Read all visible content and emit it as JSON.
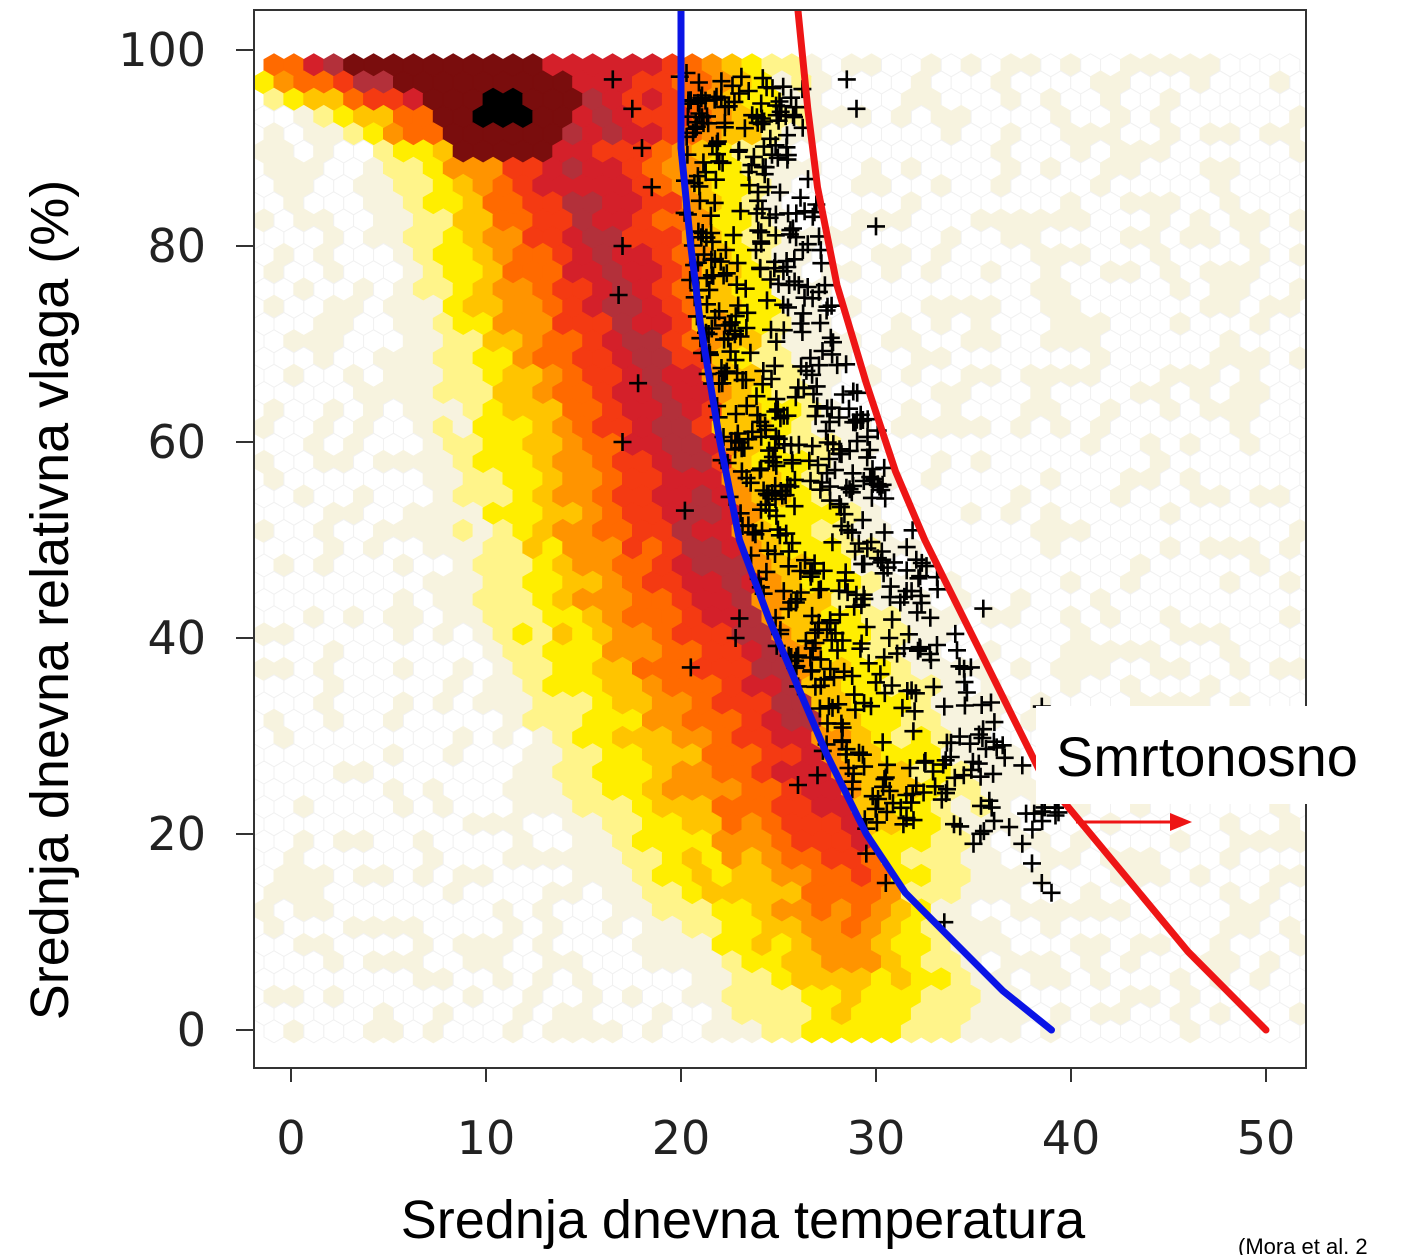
{
  "chart_data": {
    "type": "scatter",
    "xlabel": "Srednja dnevna temperatura",
    "ylabel": "Srednja dnevna relativna vlaga (%)",
    "xlim": [
      -2,
      52
    ],
    "ylim": [
      -4,
      104
    ],
    "x_ticks": [
      0,
      10,
      20,
      30,
      40,
      50
    ],
    "y_ticks": [
      0,
      20,
      40,
      60,
      80,
      100
    ],
    "x_tick_labels": [
      "0",
      "10",
      "20",
      "30",
      "40",
      "50"
    ],
    "y_tick_labels": [
      "0",
      "20",
      "40",
      "60",
      "80",
      "100"
    ],
    "grid": false,
    "annotation": "Smrtonosno",
    "source_note": "(Mora et al. 2",
    "colors": {
      "blue_line": "#0a14e6",
      "red_line": "#ee1515",
      "arrow": "#ee1515",
      "heat_low": "#f4f0dc",
      "heat_mid": "#ffee00",
      "heat_high": "#ff8a00",
      "heat_top": "#e31a1c",
      "heat_max": "#7a0d0d"
    },
    "series": [
      {
        "type": "line",
        "color": "blue",
        "points": [
          [
            20,
            104
          ],
          [
            20,
            90
          ],
          [
            20.5,
            80
          ],
          [
            21,
            72
          ],
          [
            22,
            60
          ],
          [
            23,
            50
          ],
          [
            24.5,
            42
          ],
          [
            26,
            35
          ],
          [
            27.5,
            28
          ],
          [
            29.5,
            20
          ],
          [
            31.5,
            14
          ],
          [
            34,
            9
          ],
          [
            36.5,
            4
          ],
          [
            39,
            0
          ]
        ]
      },
      {
        "type": "line",
        "color": "red",
        "points": [
          [
            26,
            104
          ],
          [
            26.5,
            94
          ],
          [
            27,
            86
          ],
          [
            28,
            76
          ],
          [
            29.5,
            66
          ],
          [
            31,
            57
          ],
          [
            32.5,
            50
          ],
          [
            34,
            44
          ],
          [
            35.5,
            38
          ],
          [
            37,
            32
          ],
          [
            38.5,
            26
          ],
          [
            41,
            20
          ],
          [
            43.5,
            14
          ],
          [
            46,
            8
          ],
          [
            48,
            4
          ],
          [
            50,
            0
          ]
        ]
      },
      {
        "type": "heatmap",
        "density_ridge": [
          [
            4,
            98
          ],
          [
            8,
            95
          ],
          [
            11,
            93
          ],
          [
            14,
            88
          ],
          [
            16,
            80
          ],
          [
            18,
            70
          ],
          [
            20,
            60
          ],
          [
            21.5,
            52
          ],
          [
            23,
            45
          ],
          [
            25,
            38
          ],
          [
            27,
            32
          ],
          [
            29,
            27
          ]
        ]
      },
      {
        "type": "scatter",
        "marker": "+",
        "outliers": [
          [
            16.5,
            97
          ],
          [
            17.5,
            94
          ],
          [
            18,
            90
          ],
          [
            18.5,
            86
          ],
          [
            17,
            80
          ],
          [
            16.8,
            75
          ],
          [
            17.8,
            66
          ],
          [
            17,
            60
          ],
          [
            20.2,
            53
          ],
          [
            20.5,
            37
          ],
          [
            22.8,
            40
          ],
          [
            23,
            42
          ],
          [
            35.5,
            43
          ],
          [
            33.5,
            33
          ],
          [
            34.5,
            26
          ],
          [
            34,
            21
          ],
          [
            35,
            19
          ],
          [
            37.5,
            19
          ],
          [
            38,
            17
          ],
          [
            38.5,
            15
          ],
          [
            39,
            14
          ],
          [
            38.5,
            33
          ],
          [
            37.5,
            27
          ],
          [
            29.5,
            18
          ],
          [
            30.5,
            15
          ],
          [
            33.5,
            11
          ],
          [
            26,
            25
          ],
          [
            27,
            26
          ],
          [
            28.5,
            97
          ],
          [
            29,
            94
          ],
          [
            30,
            82
          ]
        ]
      }
    ]
  }
}
